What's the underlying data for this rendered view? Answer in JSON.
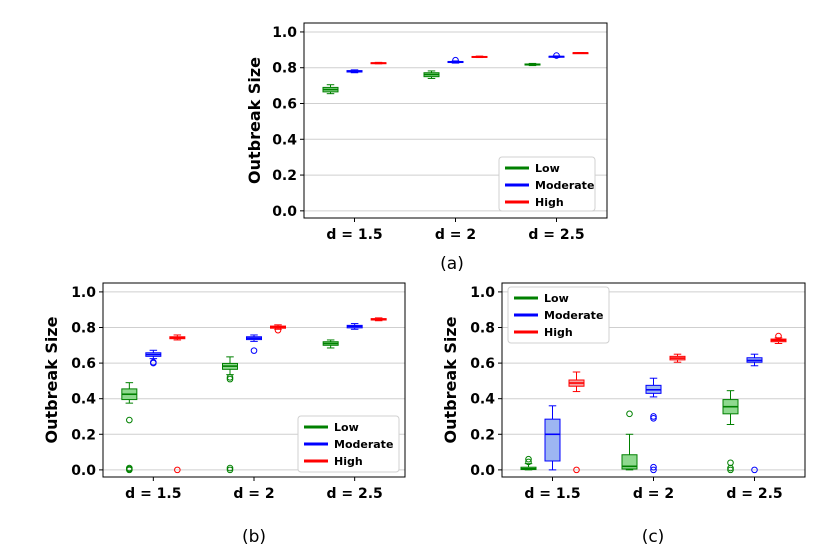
{
  "chart_data": [
    {
      "panel": "(a)",
      "type": "box",
      "caption": "(a)",
      "ylabel": "Outbreak Size",
      "categories": [
        "d = 1.5",
        "d = 2",
        "d = 2.5"
      ],
      "yticks": [
        "0.0",
        "0.2",
        "0.4",
        "0.6",
        "0.8",
        "1.0"
      ],
      "ylim": [
        -0.04,
        1.05
      ],
      "grid": "horizontal",
      "legend": {
        "position": "bottom-right",
        "entries": [
          "Low",
          "Moderate",
          "High"
        ]
      },
      "series": [
        {
          "name": "Low",
          "color": "#008000",
          "fill": "#8fd98f",
          "boxes": [
            {
              "min": 0.655,
              "q1": 0.665,
              "median": 0.678,
              "q3": 0.69,
              "max": 0.705,
              "outliers": []
            },
            {
              "min": 0.74,
              "q1": 0.75,
              "median": 0.762,
              "q3": 0.772,
              "max": 0.782,
              "outliers": []
            },
            {
              "min": 0.812,
              "q1": 0.815,
              "median": 0.818,
              "q3": 0.821,
              "max": 0.824,
              "outliers": []
            }
          ]
        },
        {
          "name": "Moderate",
          "color": "#0000ff",
          "fill": "#9db6f2",
          "boxes": [
            {
              "min": 0.772,
              "q1": 0.776,
              "median": 0.78,
              "q3": 0.784,
              "max": 0.788,
              "outliers": []
            },
            {
              "min": 0.826,
              "q1": 0.829,
              "median": 0.832,
              "q3": 0.835,
              "max": 0.838,
              "outliers": [
                0.842
              ]
            },
            {
              "min": 0.858,
              "q1": 0.86,
              "median": 0.862,
              "q3": 0.864,
              "max": 0.866,
              "outliers": [
                0.868
              ]
            }
          ]
        },
        {
          "name": "High",
          "color": "#ff0000",
          "fill": "#f5a3a3",
          "boxes": [
            {
              "min": 0.822,
              "q1": 0.824,
              "median": 0.826,
              "q3": 0.828,
              "max": 0.83,
              "outliers": []
            },
            {
              "min": 0.857,
              "q1": 0.859,
              "median": 0.861,
              "q3": 0.863,
              "max": 0.865,
              "outliers": []
            },
            {
              "min": 0.881,
              "q1": 0.882,
              "median": 0.883,
              "q3": 0.884,
              "max": 0.885,
              "outliers": []
            }
          ]
        }
      ]
    },
    {
      "panel": "(b)",
      "type": "box",
      "caption": "(b)",
      "ylabel": "Outbreak Size",
      "categories": [
        "d = 1.5",
        "d = 2",
        "d = 2.5"
      ],
      "yticks": [
        "0.0",
        "0.2",
        "0.4",
        "0.6",
        "0.8",
        "1.0"
      ],
      "ylim": [
        -0.04,
        1.05
      ],
      "grid": "horizontal",
      "legend": {
        "position": "bottom-right",
        "entries": [
          "Low",
          "Moderate",
          "High"
        ]
      },
      "series": [
        {
          "name": "Low",
          "color": "#008000",
          "fill": "#8fd98f",
          "boxes": [
            {
              "min": 0.375,
              "q1": 0.395,
              "median": 0.425,
              "q3": 0.455,
              "max": 0.49,
              "outliers": [
                0.28,
                0.01,
                0.005,
                0.0
              ]
            },
            {
              "min": 0.535,
              "q1": 0.565,
              "median": 0.583,
              "q3": 0.598,
              "max": 0.635,
              "outliers": [
                0.52,
                0.51,
                0.01,
                0.0
              ]
            },
            {
              "min": 0.685,
              "q1": 0.7,
              "median": 0.71,
              "q3": 0.72,
              "max": 0.73,
              "outliers": []
            }
          ]
        },
        {
          "name": "Moderate",
          "color": "#0000ff",
          "fill": "#9db6f2",
          "boxes": [
            {
              "min": 0.625,
              "q1": 0.638,
              "median": 0.648,
              "q3": 0.658,
              "max": 0.672,
              "outliers": [
                0.605,
                0.6
              ]
            },
            {
              "min": 0.722,
              "q1": 0.732,
              "median": 0.74,
              "q3": 0.748,
              "max": 0.758,
              "outliers": [
                0.67
              ]
            },
            {
              "min": 0.79,
              "q1": 0.798,
              "median": 0.806,
              "q3": 0.812,
              "max": 0.822,
              "outliers": []
            }
          ]
        },
        {
          "name": "High",
          "color": "#ff0000",
          "fill": "#f5a3a3",
          "boxes": [
            {
              "min": 0.73,
              "q1": 0.737,
              "median": 0.743,
              "q3": 0.748,
              "max": 0.758,
              "outliers": [
                0.0
              ]
            },
            {
              "min": 0.79,
              "q1": 0.796,
              "median": 0.802,
              "q3": 0.808,
              "max": 0.815,
              "outliers": [
                0.785
              ]
            },
            {
              "min": 0.838,
              "q1": 0.842,
              "median": 0.846,
              "q3": 0.85,
              "max": 0.854,
              "outliers": []
            }
          ]
        }
      ]
    },
    {
      "panel": "(c)",
      "type": "box",
      "caption": "(c)",
      "ylabel": "Outbreak Size",
      "categories": [
        "d = 1.5",
        "d = 2",
        "d = 2.5"
      ],
      "yticks": [
        "0.0",
        "0.2",
        "0.4",
        "0.6",
        "0.8",
        "1.0"
      ],
      "ylim": [
        -0.04,
        1.05
      ],
      "grid": "horizontal",
      "legend": {
        "position": "top-left",
        "entries": [
          "Low",
          "Moderate",
          "High"
        ]
      },
      "series": [
        {
          "name": "Low",
          "color": "#008000",
          "fill": "#8fd98f",
          "boxes": [
            {
              "min": 0.0,
              "q1": 0.002,
              "median": 0.006,
              "q3": 0.015,
              "max": 0.035,
              "outliers": [
                0.045,
                0.06
              ]
            },
            {
              "min": 0.0,
              "q1": 0.005,
              "median": 0.02,
              "q3": 0.085,
              "max": 0.2,
              "outliers": [
                0.315
              ]
            },
            {
              "min": 0.255,
              "q1": 0.315,
              "median": 0.355,
              "q3": 0.395,
              "max": 0.445,
              "outliers": [
                0.04,
                0.01,
                0.0
              ]
            }
          ]
        },
        {
          "name": "Moderate",
          "color": "#0000ff",
          "fill": "#9db6f2",
          "boxes": [
            {
              "min": 0.0,
              "q1": 0.05,
              "median": 0.2,
              "q3": 0.285,
              "max": 0.36,
              "outliers": []
            },
            {
              "min": 0.41,
              "q1": 0.43,
              "median": 0.45,
              "q3": 0.475,
              "max": 0.515,
              "outliers": [
                0.3,
                0.29,
                0.015,
                0.0
              ]
            },
            {
              "min": 0.585,
              "q1": 0.605,
              "median": 0.615,
              "q3": 0.63,
              "max": 0.65,
              "outliers": [
                0.0
              ]
            }
          ]
        },
        {
          "name": "High",
          "color": "#ff0000",
          "fill": "#f5a3a3",
          "boxes": [
            {
              "min": 0.44,
              "q1": 0.47,
              "median": 0.488,
              "q3": 0.505,
              "max": 0.55,
              "outliers": [
                0.0
              ]
            },
            {
              "min": 0.605,
              "q1": 0.618,
              "median": 0.628,
              "q3": 0.638,
              "max": 0.65,
              "outliers": []
            },
            {
              "min": 0.71,
              "q1": 0.72,
              "median": 0.728,
              "q3": 0.735,
              "max": 0.742,
              "outliers": [
                0.752
              ]
            }
          ]
        }
      ]
    }
  ]
}
